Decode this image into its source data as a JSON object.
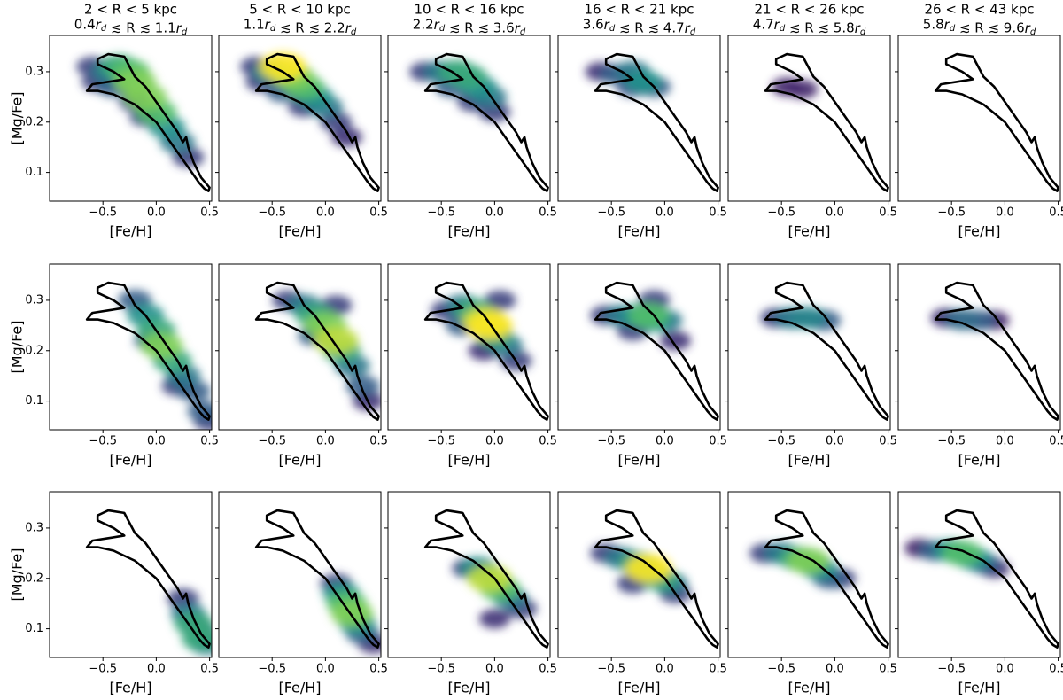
{
  "chart_data": [
    {
      "type": "hist2d",
      "title": "2 < R < 5 kpc",
      "subtitle": "0.4rd ≲ R ≲ 1.1rd",
      "xlabel": "[Fe/H]",
      "ylabel": "[Mg/Fe]",
      "xlim": [
        -1.0,
        0.52
      ],
      "ylim": [
        0.043,
        0.372
      ],
      "xticks": [
        {
          "value": -0.5,
          "label": "−0.5"
        },
        {
          "value": 0,
          "label": "0.0"
        },
        0.5
      ],
      "yticks": [
        0.1,
        0.2,
        0.3
      ],
      "contour": {
        "x": [
          -0.5,
          -0.45,
          -0.3,
          -0.25,
          -0.2,
          -0.1,
          0,
          0.1,
          0.2,
          0.25,
          0.28,
          0.3,
          0.35,
          0.42,
          0.5,
          0.49,
          0.45,
          0.4,
          0.3,
          0.2,
          0.1,
          0,
          -0.2,
          -0.4,
          -0.55,
          -0.65,
          -0.6,
          -0.45,
          -0.3,
          -0.4,
          -0.55,
          -0.55
        ],
        "y": [
          0.33,
          0.335,
          0.33,
          0.31,
          0.29,
          0.27,
          0.24,
          0.21,
          0.18,
          0.16,
          0.17,
          0.15,
          0.12,
          0.09,
          0.07,
          0.063,
          0.068,
          0.08,
          0.11,
          0.14,
          0.17,
          0.2,
          0.235,
          0.255,
          0.262,
          0.262,
          0.275,
          0.28,
          0.285,
          0.3,
          0.315,
          0.325
        ]
      },
      "density": {
        "x": [
          -0.6,
          -0.45,
          -0.35,
          -0.25,
          -0.2,
          -0.1,
          0,
          0.1,
          0.2,
          0.3,
          -0.4,
          -0.2,
          -0.1,
          -0.55
        ],
        "y": [
          0.31,
          0.3,
          0.31,
          0.3,
          0.28,
          0.25,
          0.22,
          0.19,
          0.16,
          0.13,
          0.27,
          0.24,
          0.21,
          0.28
        ],
        "level": [
          0.2,
          0.4,
          0.6,
          0.7,
          0.8,
          0.8,
          0.7,
          0.5,
          0.4,
          0.2,
          0.3,
          0.2,
          0.2,
          0.2
        ]
      }
    },
    {
      "type": "hist2d",
      "title": "5 < R < 10 kpc",
      "subtitle": "1.1rd ≲ R ≲ 2.2rd",
      "xlabel": "[Fe/H]",
      "xlim": [
        -1.0,
        0.52
      ],
      "ylim": [
        0.043,
        0.372
      ],
      "xticks": [
        {
          "value": -0.5,
          "label": "−0.5"
        },
        {
          "value": 0,
          "label": "0.0"
        },
        0.5
      ],
      "yticks": [
        0.1,
        0.2,
        0.3
      ],
      "density": {
        "x": [
          -0.65,
          -0.5,
          -0.4,
          -0.3,
          -0.2,
          -0.1,
          0,
          -0.4,
          0.1,
          -0.6,
          -0.2,
          0.2
        ],
        "y": [
          0.31,
          0.3,
          0.31,
          0.29,
          0.27,
          0.25,
          0.23,
          0.26,
          0.2,
          0.28,
          0.23,
          0.17
        ],
        "level": [
          0.2,
          0.5,
          1,
          0.8,
          0.7,
          0.5,
          0.4,
          0.3,
          0.2,
          0.2,
          0.2,
          0.15
        ]
      }
    },
    {
      "type": "hist2d",
      "title": "10 < R < 16 kpc",
      "subtitle": "2.2rd ≲ R ≲ 3.6rd",
      "xlabel": "[Fe/H]",
      "xlim": [
        -1.0,
        0.52
      ],
      "ylim": [
        0.043,
        0.372
      ],
      "xticks": [
        {
          "value": -0.5,
          "label": "−0.5"
        },
        {
          "value": 0,
          "label": "0.0"
        },
        0.5
      ],
      "yticks": [
        0.1,
        0.2,
        0.3
      ],
      "density": {
        "x": [
          -0.65,
          -0.5,
          -0.35,
          -0.25,
          -0.15,
          -0.05,
          -0.4,
          -0.2,
          0
        ],
        "y": [
          0.3,
          0.3,
          0.3,
          0.29,
          0.27,
          0.25,
          0.27,
          0.24,
          0.22
        ],
        "level": [
          0.2,
          0.4,
          0.6,
          0.6,
          0.5,
          0.4,
          0.3,
          0.2,
          0.2
        ]
      }
    },
    {
      "type": "hist2d",
      "title": "16 < R < 21 kpc",
      "subtitle": "3.6rd ≲ R ≲ 4.7rd",
      "xlabel": "[Fe/H]",
      "xlim": [
        -1.0,
        0.52
      ],
      "ylim": [
        0.043,
        0.372
      ],
      "xticks": [
        {
          "value": -0.5,
          "label": "−0.5"
        },
        {
          "value": 0,
          "label": "0.0"
        },
        0.5
      ],
      "yticks": [
        0.1,
        0.2,
        0.3
      ],
      "density": {
        "x": [
          -0.6,
          -0.45,
          -0.3,
          -0.2,
          -0.1,
          -0.3
        ],
        "y": [
          0.3,
          0.295,
          0.3,
          0.28,
          0.27,
          0.27
        ],
        "level": [
          0.15,
          0.3,
          0.4,
          0.5,
          0.3,
          0.25
        ]
      }
    },
    {
      "type": "hist2d",
      "title": "21 < R < 26 kpc",
      "subtitle": "4.7rd ≲ R ≲ 5.8rd",
      "xlabel": "[Fe/H]",
      "xlim": [
        -1.0,
        0.52
      ],
      "ylim": [
        0.043,
        0.372
      ],
      "xticks": [
        {
          "value": -0.5,
          "label": "−0.5"
        },
        {
          "value": 0,
          "label": "0.0"
        },
        0.5
      ],
      "yticks": [
        0.1,
        0.2,
        0.3
      ],
      "density": {
        "x": [
          -0.45,
          -0.3
        ],
        "y": [
          0.27,
          0.265
        ],
        "level": [
          0.1,
          0.1
        ]
      }
    },
    {
      "type": "hist2d",
      "title": "26 < R < 43 kpc",
      "subtitle": "5.8rd ≲ R ≲ 9.6rd",
      "xlabel": "[Fe/H]",
      "xlim": [
        -1.0,
        0.52
      ],
      "ylim": [
        0.043,
        0.372
      ],
      "xticks": [
        {
          "value": -0.5,
          "label": "−0.5"
        },
        {
          "value": 0,
          "label": "0.0"
        },
        0.5
      ],
      "yticks": [
        0.1,
        0.2,
        0.3
      ],
      "density": {
        "x": [],
        "y": [],
        "level": []
      }
    },
    {
      "type": "hist2d",
      "xlabel": "[Fe/H]",
      "ylabel": "[Mg/Fe]",
      "xlim": [
        -1.0,
        0.52
      ],
      "ylim": [
        0.043,
        0.372
      ],
      "xticks": [
        {
          "value": -0.5,
          "label": "−0.5"
        },
        {
          "value": 0,
          "label": "0.0"
        },
        0.5
      ],
      "yticks": [
        0.1,
        0.2,
        0.3
      ],
      "density": {
        "x": [
          -0.2,
          -0.1,
          0,
          0.05,
          0.15,
          0.25,
          0.35,
          0.45,
          0.5,
          -0.05,
          0.2
        ],
        "y": [
          0.3,
          0.27,
          0.24,
          0.21,
          0.18,
          0.15,
          0.12,
          0.08,
          0.06,
          0.22,
          0.13
        ],
        "level": [
          0.3,
          0.5,
          0.6,
          0.8,
          0.6,
          0.4,
          0.3,
          0.3,
          0.2,
          0.3,
          0.2
        ]
      }
    },
    {
      "type": "hist2d",
      "xlabel": "[Fe/H]",
      "xlim": [
        -1.0,
        0.52
      ],
      "ylim": [
        0.043,
        0.372
      ],
      "xticks": [
        {
          "value": -0.5,
          "label": "−0.5"
        },
        {
          "value": 0,
          "label": "0.0"
        },
        0.5
      ],
      "yticks": [
        0.1,
        0.2,
        0.3
      ],
      "density": {
        "x": [
          -0.35,
          -0.2,
          -0.1,
          0,
          0.1,
          0.15,
          0.25,
          0.35,
          0.4,
          -0.1,
          0.1
        ],
        "y": [
          0.3,
          0.29,
          0.27,
          0.25,
          0.22,
          0.2,
          0.17,
          0.13,
          0.1,
          0.23,
          0.29
        ],
        "level": [
          0.2,
          0.4,
          0.6,
          0.8,
          0.9,
          0.6,
          0.4,
          0.3,
          0.15,
          0.3,
          0.2
        ]
      }
    },
    {
      "type": "hist2d",
      "xlabel": "[Fe/H]",
      "xlim": [
        -1.0,
        0.52
      ],
      "ylim": [
        0.043,
        0.372
      ],
      "xticks": [
        {
          "value": -0.5,
          "label": "−0.5"
        },
        {
          "value": 0,
          "label": "0.0"
        },
        0.5
      ],
      "yticks": [
        0.1,
        0.2,
        0.3
      ],
      "density": {
        "x": [
          -0.45,
          -0.3,
          -0.2,
          -0.1,
          -0.05,
          0,
          0.1,
          -0.3,
          0.05,
          0.2,
          -0.1
        ],
        "y": [
          0.28,
          0.29,
          0.28,
          0.26,
          0.25,
          0.23,
          0.21,
          0.25,
          0.3,
          0.18,
          0.2
        ],
        "level": [
          0.2,
          0.4,
          0.6,
          0.9,
          1,
          0.6,
          0.4,
          0.3,
          0.2,
          0.2,
          0.15
        ]
      }
    },
    {
      "type": "hist2d",
      "xlabel": "[Fe/H]",
      "xlim": [
        -1.0,
        0.52
      ],
      "ylim": [
        0.043,
        0.372
      ],
      "xticks": [
        {
          "value": -0.5,
          "label": "−0.5"
        },
        {
          "value": 0,
          "label": "0.0"
        },
        0.5
      ],
      "yticks": [
        0.1,
        0.2,
        0.3
      ],
      "density": {
        "x": [
          -0.55,
          -0.4,
          -0.25,
          -0.15,
          -0.1,
          0,
          -0.3,
          -0.1,
          0.1
        ],
        "y": [
          0.27,
          0.27,
          0.27,
          0.27,
          0.26,
          0.26,
          0.24,
          0.3,
          0.22
        ],
        "level": [
          0.2,
          0.4,
          0.5,
          0.7,
          0.5,
          0.4,
          0.2,
          0.2,
          0.15
        ]
      }
    },
    {
      "type": "hist2d",
      "xlabel": "[Fe/H]",
      "xlim": [
        -1.0,
        0.52
      ],
      "ylim": [
        0.043,
        0.372
      ],
      "xticks": [
        {
          "value": -0.5,
          "label": "−0.5"
        },
        {
          "value": 0,
          "label": "0.0"
        },
        0.5
      ],
      "yticks": [
        0.1,
        0.2,
        0.3
      ],
      "density": {
        "x": [
          -0.55,
          -0.4,
          -0.25,
          -0.1
        ],
        "y": [
          0.265,
          0.265,
          0.265,
          0.26
        ],
        "level": [
          0.2,
          0.4,
          0.45,
          0.3
        ]
      }
    },
    {
      "type": "hist2d",
      "xlabel": "[Fe/H]",
      "xlim": [
        -1.0,
        0.52
      ],
      "ylim": [
        0.043,
        0.372
      ],
      "xticks": [
        {
          "value": -0.5,
          "label": "−0.5"
        },
        {
          "value": 0,
          "label": "0.0"
        },
        0.5
      ],
      "yticks": [
        0.1,
        0.2,
        0.3
      ],
      "density": {
        "x": [
          -0.55,
          -0.4,
          -0.25,
          -0.1
        ],
        "y": [
          0.265,
          0.262,
          0.26,
          0.26
        ],
        "level": [
          0.15,
          0.35,
          0.3,
          0.1
        ]
      }
    },
    {
      "type": "hist2d",
      "xlabel": "[Fe/H]",
      "ylabel": "[Mg/Fe]",
      "xlim": [
        -1.0,
        0.52
      ],
      "ylim": [
        0.043,
        0.372
      ],
      "xticks": [
        {
          "value": -0.5,
          "label": "−0.5"
        },
        {
          "value": 0,
          "label": "0.0"
        },
        0.5
      ],
      "yticks": [
        0.1,
        0.2,
        0.3
      ],
      "density": {
        "x": [
          0.25,
          0.3,
          0.35,
          0.42,
          0.47,
          0.4
        ],
        "y": [
          0.16,
          0.13,
          0.11,
          0.08,
          0.07,
          0.1
        ],
        "level": [
          0.2,
          0.4,
          0.6,
          0.6,
          0.4,
          0.3
        ]
      }
    },
    {
      "type": "hist2d",
      "xlabel": "[Fe/H]",
      "xlim": [
        -1.0,
        0.52
      ],
      "ylim": [
        0.043,
        0.372
      ],
      "xticks": [
        {
          "value": -0.5,
          "label": "−0.5"
        },
        {
          "value": 0,
          "label": "0.0"
        },
        0.5
      ],
      "yticks": [
        0.1,
        0.2,
        0.3
      ],
      "density": {
        "x": [
          0.1,
          0.15,
          0.2,
          0.25,
          0.3,
          0.35,
          0.45
        ],
        "y": [
          0.19,
          0.17,
          0.15,
          0.13,
          0.11,
          0.09,
          0.07
        ],
        "level": [
          0.2,
          0.5,
          0.7,
          0.8,
          0.5,
          0.3,
          0.15
        ]
      }
    },
    {
      "type": "hist2d",
      "xlabel": "[Fe/H]",
      "xlim": [
        -1.0,
        0.52
      ],
      "ylim": [
        0.043,
        0.372
      ],
      "xticks": [
        {
          "value": -0.5,
          "label": "−0.5"
        },
        {
          "value": 0,
          "label": "0.0"
        },
        0.5
      ],
      "yticks": [
        0.1,
        0.2,
        0.3
      ],
      "density": {
        "x": [
          -0.25,
          -0.15,
          -0.05,
          0.05,
          0.15,
          0.25,
          0
        ],
        "y": [
          0.22,
          0.22,
          0.2,
          0.18,
          0.16,
          0.14,
          0.12
        ],
        "level": [
          0.2,
          0.5,
          0.9,
          0.7,
          0.4,
          0.2,
          0.15
        ]
      }
    },
    {
      "type": "hist2d",
      "xlabel": "[Fe/H]",
      "xlim": [
        -1.0,
        0.52
      ],
      "ylim": [
        0.043,
        0.372
      ],
      "xticks": [
        {
          "value": -0.5,
          "label": "−0.5"
        },
        {
          "value": 0,
          "label": "0.0"
        },
        0.5
      ],
      "yticks": [
        0.1,
        0.2,
        0.3
      ],
      "density": {
        "x": [
          -0.55,
          -0.4,
          -0.25,
          -0.15,
          -0.05,
          0.05,
          0.1,
          -0.3,
          -0.2
        ],
        "y": [
          0.25,
          0.24,
          0.23,
          0.22,
          0.2,
          0.19,
          0.17,
          0.19,
          0.21
        ],
        "level": [
          0.2,
          0.4,
          0.6,
          1,
          0.6,
          0.4,
          0.2,
          0.2,
          0.3
        ]
      }
    },
    {
      "type": "hist2d",
      "xlabel": "[Fe/H]",
      "xlim": [
        -1.0,
        0.52
      ],
      "ylim": [
        0.043,
        0.372
      ],
      "xticks": [
        {
          "value": -0.5,
          "label": "−0.5"
        },
        {
          "value": 0,
          "label": "0.0"
        },
        0.5
      ],
      "yticks": [
        0.1,
        0.2,
        0.3
      ],
      "density": {
        "x": [
          -0.65,
          -0.5,
          -0.35,
          -0.25,
          -0.15,
          -0.05,
          0.05
        ],
        "y": [
          0.25,
          0.25,
          0.24,
          0.235,
          0.22,
          0.2,
          0.2
        ],
        "level": [
          0.2,
          0.4,
          0.6,
          0.8,
          0.5,
          0.3,
          0.2
        ]
      }
    },
    {
      "type": "hist2d",
      "xlabel": "[Fe/H]",
      "xlim": [
        -1.0,
        0.52
      ],
      "ylim": [
        0.043,
        0.372
      ],
      "xticks": [
        {
          "value": -0.5,
          "label": "−0.5"
        },
        {
          "value": 0,
          "label": "0.0"
        },
        0.5
      ],
      "yticks": [
        0.1,
        0.2,
        0.3
      ],
      "density": {
        "x": [
          -0.8,
          -0.65,
          -0.5,
          -0.4,
          -0.3,
          -0.2,
          -0.1
        ],
        "y": [
          0.26,
          0.255,
          0.255,
          0.25,
          0.24,
          0.23,
          0.22
        ],
        "level": [
          0.1,
          0.3,
          0.5,
          0.7,
          0.5,
          0.3,
          0.15
        ]
      }
    }
  ]
}
